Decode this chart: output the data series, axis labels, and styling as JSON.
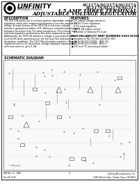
{
  "bg_color": "#f0f0f0",
  "page_bg": "#ffffff",
  "title_line1": "SG117A/SG217A/SG317A",
  "title_line2": "SG117S/SG217S/SG317",
  "subtitle_line1": "1.5 AMP THREE TERMINAL",
  "subtitle_line2": "ADJUSTABLE VOLTAGE REGULATOR",
  "logo_text": "LINFINITY",
  "logo_sub": "MICROELECTRONICS",
  "section1_title": "DESCRIPTION",
  "section2_title": "FEATURES",
  "description_text": "The SG117A Series are 3-terminal positive adjustable voltage\nregulators which offer improved performance over the original LT1\ndesign. A major feature of the SG117A is reference voltage\ntolerance guaranteed within ±1% offering a controlled power supply\ntolerance far better than 5% using inexpensive 1% resistors. Line\nand load regulation performance has been improved as well.\nAdditionally, the SGT17A reference voltage is guaranteed not to\nexceed 4% when operating over the full load, line and power\ndissipation conditions. The SG117A adjustable regulator offers an\nimproved solution for all positive voltage regulator requirements\nwith load currents up to 1.5A.",
  "features_text": "1% output voltage tolerance\n0.01% /V line regulation\n0.5% load regulation\nMin. 1.5A output current\nAvailable in National TO-3 pin",
  "reliability_title": "HIGH RELIABILITY PART NUMBERS-SGS17A/SGS17",
  "reliability_text": "Available for MIL-STD-883 and DESC 5962\nMIL-M-38510/11709/B4 - JANS 778\nMIL-M-38510/11709/B4 - JANS CT\n100 level \"B\" processing available",
  "schematic_title": "SCHEMATIC DIAGRAM",
  "footer_left": "DS4 Rev. 2.1  1994\nFile #4 0-019",
  "footer_center": "1",
  "footer_right": "LinFinity Microelectronics, Inc.\n11861 Western Ave., Garden Grove, CA 92641"
}
